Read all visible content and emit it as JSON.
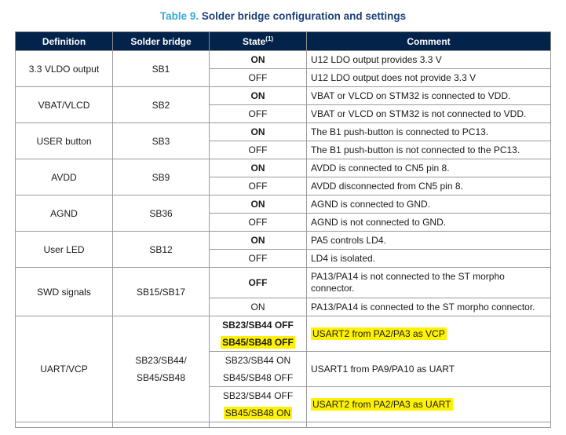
{
  "title": {
    "number": "Table 9.",
    "text": "Solder bridge configuration and settings"
  },
  "headers": {
    "definition": "Definition",
    "solder_bridge": "Solder bridge",
    "state": "State",
    "state_note": "(1)",
    "comment": "Comment"
  },
  "rows": [
    {
      "definition": "3.3 VLDO output",
      "bridge": "SB1",
      "states": [
        {
          "state": "ON",
          "comment": "U12 LDO output provides 3.3 V"
        },
        {
          "state": "OFF",
          "comment": "U12 LDO output does not provide 3.3 V"
        }
      ]
    },
    {
      "definition": "VBAT/VLCD",
      "bridge": "SB2",
      "states": [
        {
          "state": "ON",
          "comment": "VBAT or VLCD on STM32 is connected to VDD."
        },
        {
          "state": "OFF",
          "comment": "VBAT or VLCD on STM32 is not connected to VDD."
        }
      ]
    },
    {
      "definition": "USER button",
      "bridge": "SB3",
      "states": [
        {
          "state": "ON",
          "comment": "The B1 push-button is connected to PC13."
        },
        {
          "state": "OFF",
          "comment": "The B1 push-button is not connected to the PC13."
        }
      ]
    },
    {
      "definition": "AVDD",
      "bridge": "SB9",
      "states": [
        {
          "state": "ON",
          "comment": "AVDD is connected to CN5 pin 8."
        },
        {
          "state": "OFF",
          "comment": "AVDD disconnected from CN5 pin 8."
        }
      ]
    },
    {
      "definition": "AGND",
      "bridge": "SB36",
      "states": [
        {
          "state": "ON",
          "comment": "AGND is connected to GND."
        },
        {
          "state": "OFF",
          "comment": "AGND is not connected to GND."
        }
      ]
    },
    {
      "definition": "User LED",
      "bridge": "SB12",
      "states": [
        {
          "state": "ON",
          "comment": "PA5 controls LD4."
        },
        {
          "state": "OFF",
          "comment": "LD4 is isolated."
        }
      ]
    },
    {
      "definition": "SWD signals",
      "bridge": "SB15/SB17",
      "states": [
        {
          "state": "OFF",
          "comment": "PA13/PA14 is not connected to the ST morpho connector."
        },
        {
          "state": "ON",
          "comment": "PA13/PA14 is connected to the ST morpho connector."
        }
      ]
    }
  ],
  "uart": {
    "definition": "UART/VCP",
    "bridge_line1": "SB23/SB44/",
    "bridge_line2": "SB45/SB48",
    "states": [
      {
        "line1": "SB23/SB44 OFF",
        "line2": "SB45/SB48 OFF",
        "comment": "USART2 from PA2/PA3 as VCP"
      },
      {
        "line1": "SB23/SB44 ON",
        "line2": "SB45/SB48 OFF",
        "comment": "USART1 from PA9/PA10 as UART"
      },
      {
        "line1": "SB23/SB44 OFF",
        "line2": "SB45/SB48 ON",
        "comment": "USART2 from PA2/PA3 as UART"
      }
    ]
  },
  "colors": {
    "header_bg": "#03234b",
    "title": "#1d3f78",
    "highlight": "#fff200"
  }
}
